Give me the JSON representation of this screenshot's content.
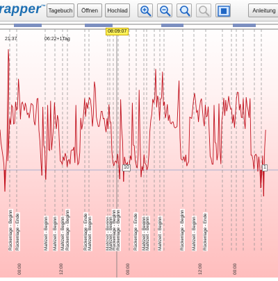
{
  "app": {
    "logo_text": "rapper",
    "logo_mark": "™"
  },
  "toolbar": {
    "buttons": [
      "Tagebuch",
      "Öffnen",
      "Hochlad"
    ],
    "help": "Anleitung",
    "icons": [
      "zoom-in-icon",
      "zoom-out-icon",
      "zoom-fit-icon",
      "zoom-disabled-icon",
      "window-fit-icon"
    ]
  },
  "chart": {
    "line_color": "#c0101c",
    "cursor_time": "08:09:07",
    "top_labels": [
      "21:37",
      "06:22+1Tag"
    ],
    "value_markers": [
      "10",
      "1"
    ],
    "time_ticks": [
      "00:00",
      "12:00",
      "00:00",
      "12:00",
      "00:00"
    ],
    "events": [
      "Rückenlage - Beginn",
      "Rückenlage - Ende",
      "Mahlzeit - Beginn",
      "Mahlzeit - Beginn",
      "Mahlzeit - Beginn",
      "Rückenlage - Beginn",
      "Rückenlage - Ende",
      "Mahlzeit - Beginn",
      "Mahlzeit - Beginn",
      "Mahlzeit - Beginn",
      "Rückenlage - Beginn",
      "Rückenlage - Beginn",
      "Rückenlage - Ende",
      "Mahlzeit - Beginn",
      "Mahlzeit - Beginn",
      "Mahlzeit - Beginn",
      "Rückenlage - Beginn",
      "Mahlzeit - Beginn",
      "Rückenlage - Ende"
    ]
  }
}
